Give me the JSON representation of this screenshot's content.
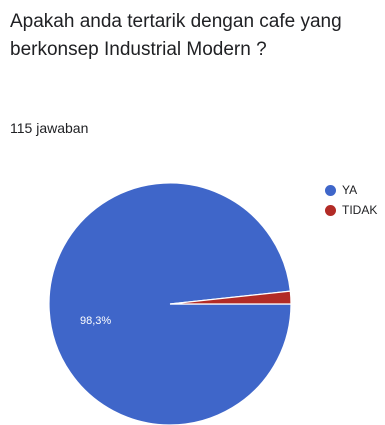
{
  "question": "Apakah anda tertarik dengan cafe yang berkonsep Industrial Modern ?",
  "responses_label": "115 jawaban",
  "chart_data": {
    "type": "pie",
    "slices": [
      {
        "label": "YA",
        "value": 98.3,
        "color": "#3f66c9",
        "data_label": "98,3%"
      },
      {
        "label": "TIDAK",
        "value": 1.7,
        "color": "#b22b26",
        "data_label": ""
      }
    ],
    "legend_position": "top-right"
  }
}
